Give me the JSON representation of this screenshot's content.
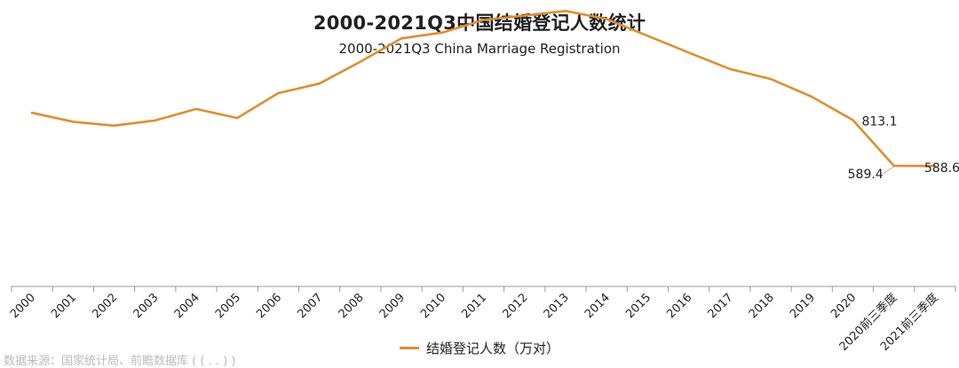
{
  "colors": {
    "line": "#E08E2D",
    "axis": "#9a9a9a",
    "text": "#222222",
    "leader": "#b5b5b5"
  },
  "chart_data": {
    "type": "line",
    "title": "2000-2021Q3中国结婚登记人数统计",
    "subtitle": "2000-2021Q3 China Marriage Registration",
    "xlabel": "",
    "ylabel": "",
    "grid": false,
    "legend_position": "bottom-center",
    "categories": [
      "2000",
      "2001",
      "2002",
      "2003",
      "2004",
      "2005",
      "2006",
      "2007",
      "2008",
      "2009",
      "2010",
      "2011",
      "2012",
      "2013",
      "2014",
      "2015",
      "2016",
      "2017",
      "2018",
      "2019",
      "2020",
      "2020前三季度",
      "2021前三季度"
    ],
    "series": [
      {
        "name": "结婚登记人数（万对）",
        "values": [
          848.5,
          805.0,
          786.0,
          811.4,
          867.2,
          823.1,
          945.0,
          991.4,
          1098.3,
          1212.4,
          1241.0,
          1302.4,
          1323.6,
          1346.9,
          1306.7,
          1224.7,
          1142.8,
          1063.1,
          1013.9,
          927.3,
          813.1,
          589.4,
          588.6
        ]
      }
    ],
    "data_labels": [
      {
        "category": "2020",
        "text": "813.1"
      },
      {
        "category": "2020前三季度",
        "text": "589.4"
      },
      {
        "category": "2021前三季度",
        "text": "588.6"
      }
    ],
    "ylim": [
      0,
      1400
    ]
  },
  "legend": {
    "label": "结婚登记人数（万对）"
  },
  "footer": {
    "source": "数据来源：国家统计局、前瞻数据库 ( (  .   .   )   )"
  }
}
